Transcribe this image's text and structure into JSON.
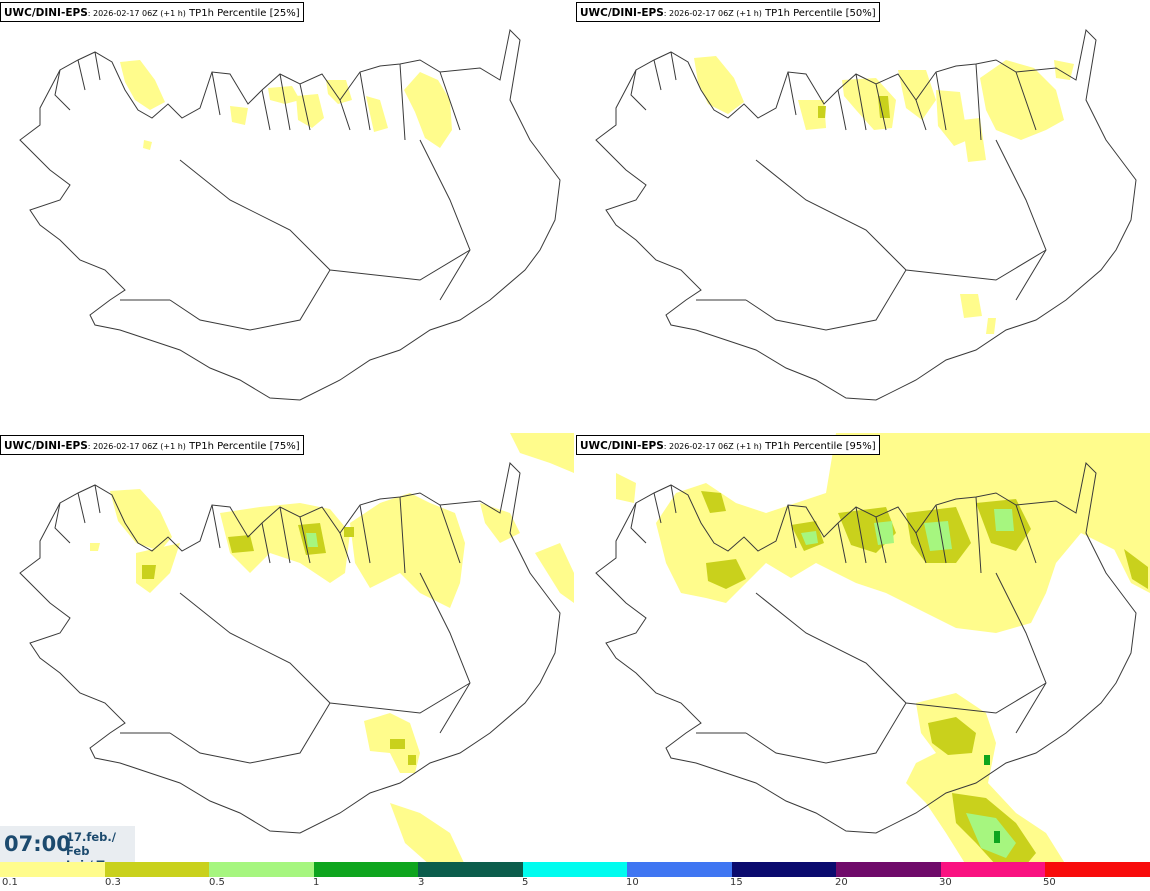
{
  "panels": [
    {
      "model": "UWC/DINI-EPS",
      "run": ": 2026-02-17 06Z (+1 h)",
      "variable": " TP1h Percentile [25%]"
    },
    {
      "model": "UWC/DINI-EPS",
      "run": ": 2026-02-17 06Z (+1 h)",
      "variable": " TP1h Percentile [50%]"
    },
    {
      "model": "UWC/DINI-EPS",
      "run": ": 2026-02-17 06Z (+1 h)",
      "variable": " TP1h Percentile [75%]"
    },
    {
      "model": "UWC/DINI-EPS",
      "run": ": 2026-02-17 06Z (+1 h)",
      "variable": " TP1h Percentile [95%]"
    }
  ],
  "clock": {
    "time": "07:00",
    "date_line1": "17.feb./ Feb",
    "date_line2": "Þri./ Tue"
  },
  "legend": {
    "ticks": [
      "0.1",
      "0.3",
      "0.5",
      "1",
      "3",
      "5",
      "10",
      "15",
      "20",
      "30",
      "50"
    ],
    "colors": [
      "#fffc8c",
      "#c9d11c",
      "#a6f67f",
      "#0ea51e",
      "#0b5d4c",
      "#00fcef",
      "#3f76f2",
      "#0a0a6e",
      "#6f0a6a",
      "#fa1281",
      "#f80b0b"
    ]
  }
}
